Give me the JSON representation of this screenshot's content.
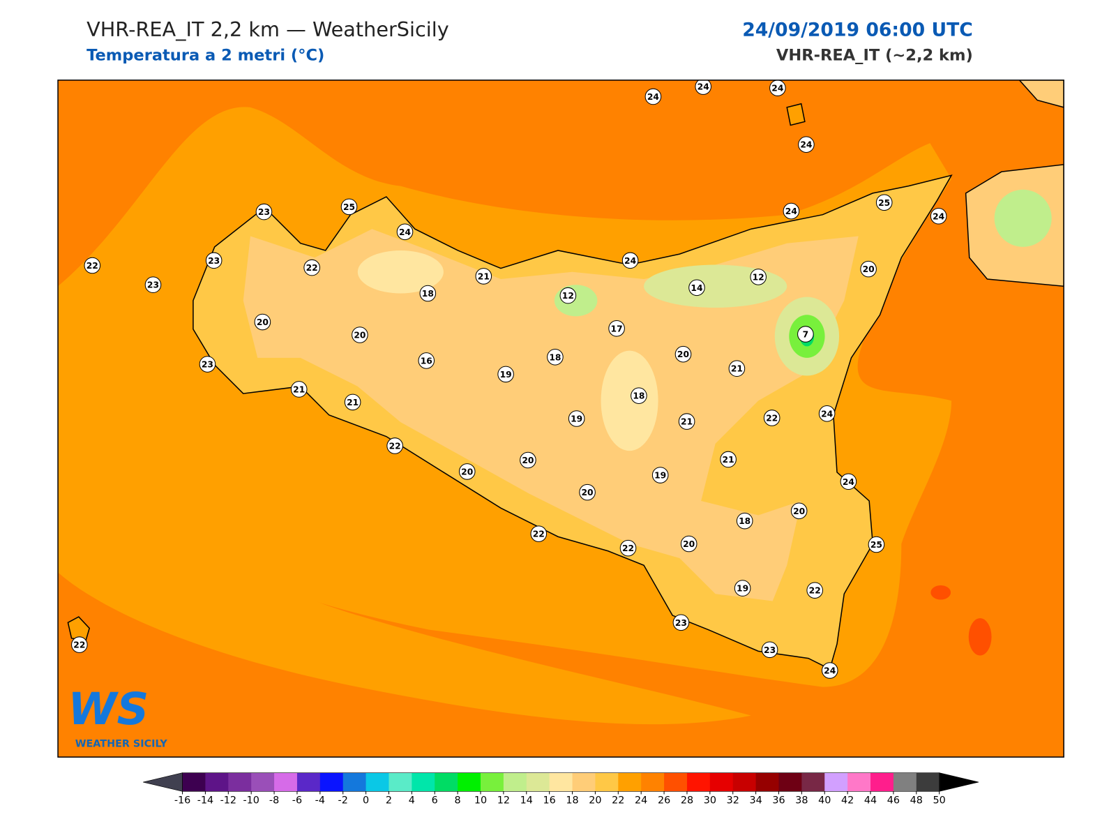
{
  "header": {
    "title": "VHR-REA_IT 2,2 km — WeatherSicily",
    "subtitle": "Temperatura a 2 metri (°C)",
    "datetime": "24/09/2019 06:00 UTC",
    "model": "VHR-REA_IT (~2,2 km)"
  },
  "stations": [
    24,
    24,
    24,
    24,
    23,
    25,
    24,
    25,
    24,
    24,
    22,
    23,
    23,
    22,
    21,
    24,
    12,
    20,
    18,
    12,
    14,
    20,
    20,
    17,
    7,
    20,
    16,
    18,
    19,
    21,
    23,
    21,
    21,
    18,
    19,
    21,
    22,
    24,
    22,
    20,
    21,
    20,
    19,
    24,
    20,
    20,
    18,
    22,
    22,
    20,
    25,
    19,
    22,
    23,
    23,
    24,
    22
  ],
  "colorbar": {
    "ticks": [
      -16,
      -14,
      -12,
      -10,
      -8,
      -6,
      -4,
      -2,
      0,
      2,
      4,
      6,
      8,
      10,
      12,
      14,
      16,
      18,
      20,
      22,
      24,
      26,
      28,
      30,
      32,
      34,
      36,
      38,
      40,
      42,
      44,
      46,
      48,
      50
    ],
    "colors": [
      "#3d0050",
      "#5e1488",
      "#7b2e9e",
      "#9a4fb8",
      "#d66be8",
      "#5a28c8",
      "#0a14ff",
      "#1478dc",
      "#0ac8e6",
      "#5aebc8",
      "#00e6aa",
      "#00dc64",
      "#00f000",
      "#78f03c",
      "#c0ee8c",
      "#dce896",
      "#ffe6a0",
      "#ffcd78",
      "#ffc846",
      "#ffa000",
      "#ff8200",
      "#ff5000",
      "#ff1400",
      "#e60000",
      "#c80000",
      "#960000",
      "#6e0014",
      "#782846",
      "#d2a0ff",
      "#ff78c8",
      "#ff1e8c",
      "#808080",
      "#3c3c3c"
    ],
    "under_color": "#404050",
    "over_color": "#000000"
  },
  "logo": {
    "mark": "WS",
    "name": "WEATHER SICILY"
  }
}
